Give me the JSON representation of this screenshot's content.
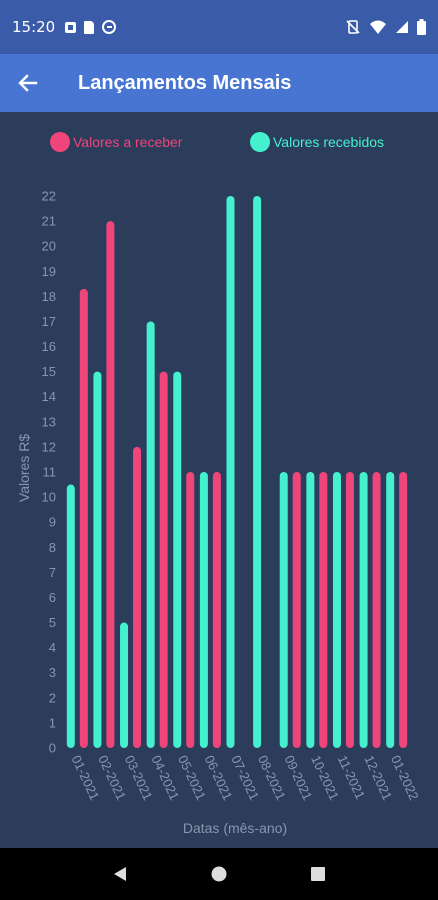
{
  "status_bar": {
    "time": "15:20",
    "icons": [
      "notification-box-icon",
      "sd-card-icon",
      "no-disturb-icon",
      "vibrate-off-icon",
      "wifi-icon",
      "signal-icon",
      "battery-icon"
    ]
  },
  "app_bar": {
    "title": "Lançamentos Mensais",
    "back_icon": "arrow-left-icon"
  },
  "colors": {
    "status_bar_bg": "#3a5ca8",
    "app_bar_bg": "#4775d1",
    "chart_bg": "#2b3d5b",
    "receber": "#f0457a",
    "recebidos": "#45f0cf",
    "axis_text": "#8796ad"
  },
  "chart_data": {
    "type": "bar",
    "categories": [
      "01-2021",
      "02-2021",
      "03-2021",
      "04-2021",
      "05-2021",
      "06-2021",
      "07-2021",
      "08-2021",
      "09-2021",
      "10-2021",
      "11-2021",
      "12-2021",
      "01-2022"
    ],
    "series": [
      {
        "name": "Valores recebidos",
        "color": "#45f0cf",
        "values": [
          10.5,
          15,
          5,
          17,
          15,
          11,
          22,
          22,
          11,
          11,
          11,
          11,
          11
        ]
      },
      {
        "name": "Valores a receber",
        "color": "#f0457a",
        "values": [
          18.3,
          21,
          12,
          15,
          11,
          11,
          0,
          0,
          11,
          11,
          11,
          11,
          11
        ]
      }
    ],
    "xlabel": "Datas (mês-ano)",
    "ylabel": "Valores R$",
    "ylim": [
      0,
      22
    ],
    "yticks": [
      "0",
      "1",
      "2",
      "3",
      "4",
      "5",
      "6",
      "7",
      "8",
      "9",
      "10",
      "11",
      "12",
      "13",
      "14",
      "15",
      "16",
      "17",
      "18",
      "19",
      "20",
      "21",
      "22"
    ],
    "legend": [
      {
        "label": "Valores a receber",
        "color": "#f0457a"
      },
      {
        "label": "Valores recebidos",
        "color": "#45f0cf"
      }
    ],
    "legend_position": "top",
    "grid": false
  },
  "nav_bar": {
    "buttons": [
      "back-triangle-icon",
      "home-circle-icon",
      "recents-square-icon"
    ]
  }
}
